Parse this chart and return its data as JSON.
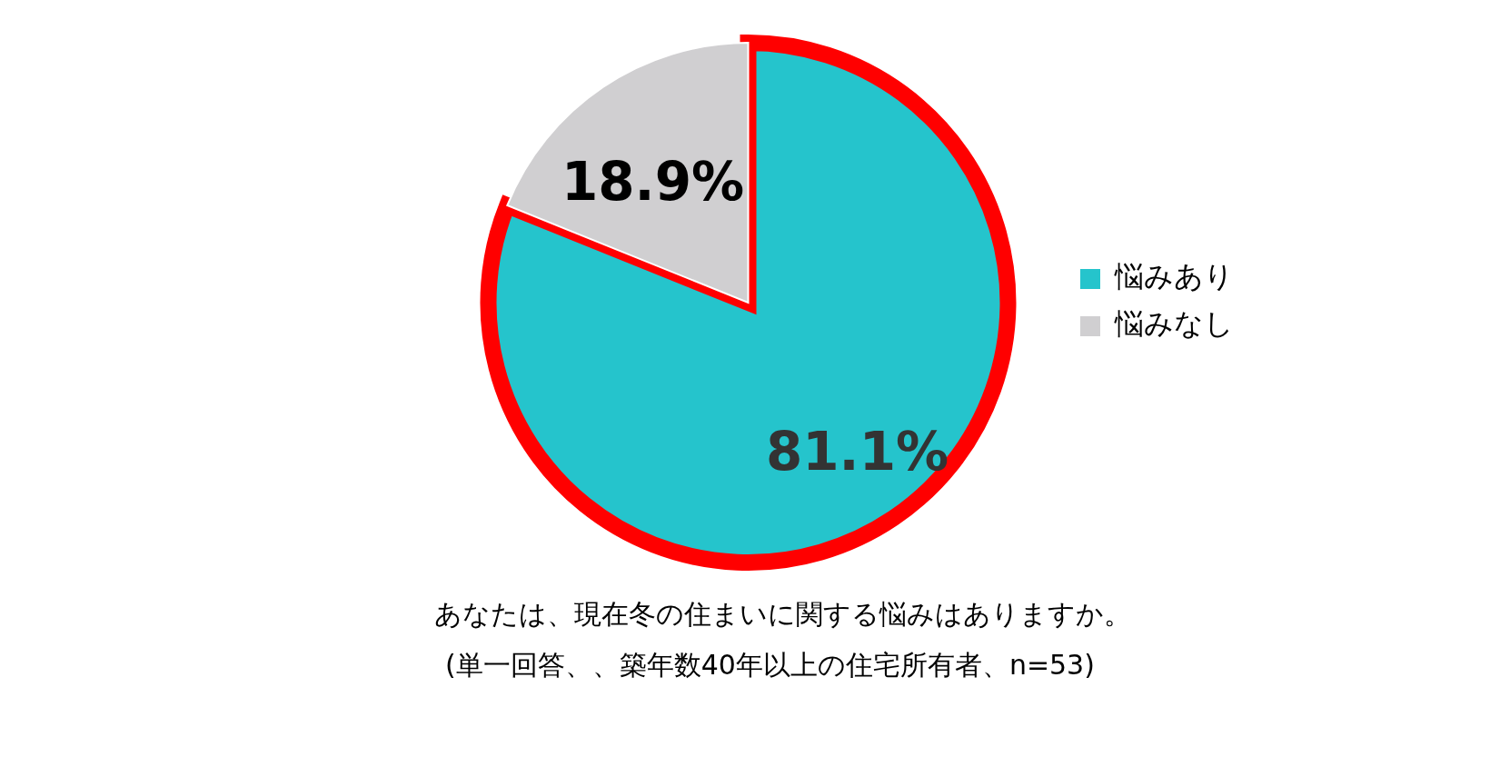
{
  "chart_data": {
    "type": "pie",
    "categories": [
      "悩みあり",
      "悩みなし"
    ],
    "values": [
      81.1,
      18.9
    ],
    "colors": [
      "#25c4cc",
      "#d0cfd1"
    ],
    "value_labels": [
      "81.1%",
      "18.9%"
    ],
    "legend": "right",
    "annotations": [
      "あなたは、現在冬の住まいに関する悩みはありますか。",
      "(単一回答、、築年数40年以上の住宅所有者、n=53)"
    ]
  }
}
